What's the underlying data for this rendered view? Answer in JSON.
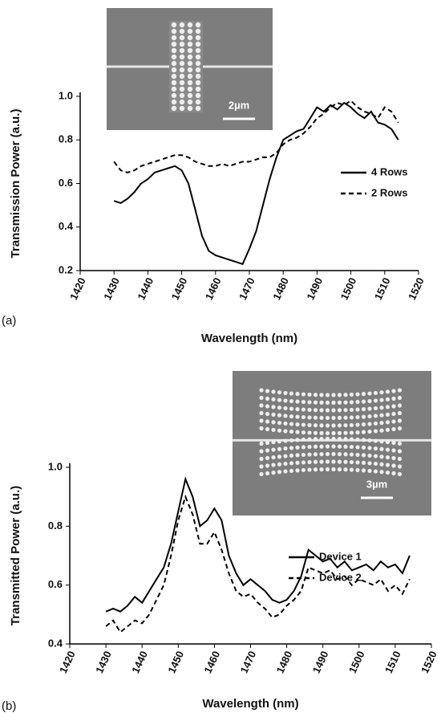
{
  "chart_data": [
    {
      "type": "line",
      "panel_label": "(a)",
      "inset_label": "2µm",
      "x_label": "Wavelength (nm)",
      "y_label": "Transmission Power (a.u.)",
      "xlim": [
        1420,
        1520
      ],
      "xticks": [
        1420,
        1430,
        1440,
        1450,
        1460,
        1470,
        1480,
        1490,
        1500,
        1510,
        1520
      ],
      "ylim": [
        0.2,
        1.0
      ],
      "yticks": [
        0.2,
        0.4,
        0.6,
        0.8,
        {
          "value": 1.0,
          "label": "1.0"
        }
      ],
      "grid": false,
      "x": [
        1430,
        1432,
        1434,
        1436,
        1438,
        1440,
        1442,
        1444,
        1446,
        1448,
        1450,
        1452,
        1454,
        1456,
        1458,
        1460,
        1462,
        1464,
        1466,
        1468,
        1470,
        1472,
        1474,
        1476,
        1478,
        1480,
        1482,
        1484,
        1486,
        1488,
        1490,
        1492,
        1494,
        1496,
        1498,
        1500,
        1502,
        1504,
        1506,
        1508,
        1510,
        1512,
        1514
      ],
      "series": [
        {
          "name": "4 Rows",
          "color": "#000000",
          "line_style": "solid",
          "values": [
            0.52,
            0.51,
            0.53,
            0.56,
            0.6,
            0.62,
            0.65,
            0.66,
            0.67,
            0.68,
            0.66,
            0.6,
            0.48,
            0.36,
            0.29,
            0.27,
            0.26,
            0.25,
            0.24,
            0.23,
            0.3,
            0.38,
            0.5,
            0.62,
            0.72,
            0.8,
            0.82,
            0.84,
            0.85,
            0.9,
            0.95,
            0.93,
            0.96,
            0.94,
            0.97,
            0.95,
            0.92,
            0.9,
            0.93,
            0.88,
            0.87,
            0.85,
            0.8
          ]
        },
        {
          "name": "2 Rows",
          "color": "#000000",
          "line_style": "dashed",
          "values": [
            0.7,
            0.66,
            0.65,
            0.66,
            0.68,
            0.69,
            0.7,
            0.71,
            0.72,
            0.73,
            0.73,
            0.72,
            0.7,
            0.69,
            0.68,
            0.68,
            0.69,
            0.68,
            0.69,
            0.7,
            0.7,
            0.71,
            0.72,
            0.72,
            0.74,
            0.78,
            0.8,
            0.81,
            0.83,
            0.86,
            0.9,
            0.92,
            0.95,
            0.97,
            0.96,
            0.98,
            0.95,
            0.93,
            0.92,
            0.9,
            0.95,
            0.93,
            0.88
          ]
        }
      ]
    },
    {
      "type": "line",
      "panel_label": "(b)",
      "inset_label": "3µm",
      "x_label": "Wavelength (nm)",
      "y_label": "Transmitted Power (a.u.)",
      "xlim": [
        1420,
        1520
      ],
      "xticks": [
        1420,
        1430,
        1440,
        1450,
        1460,
        1470,
        1480,
        1490,
        1500,
        1510,
        1520
      ],
      "ylim": [
        0.4,
        1.0
      ],
      "yticks": [
        0.4,
        0.6,
        0.8,
        {
          "value": 1.0,
          "label": "1.0"
        }
      ],
      "grid": false,
      "x": [
        1430,
        1432,
        1434,
        1436,
        1438,
        1440,
        1442,
        1444,
        1446,
        1448,
        1450,
        1452,
        1454,
        1456,
        1458,
        1460,
        1462,
        1464,
        1466,
        1468,
        1470,
        1472,
        1474,
        1476,
        1478,
        1480,
        1482,
        1484,
        1486,
        1488,
        1490,
        1492,
        1494,
        1496,
        1498,
        1500,
        1502,
        1504,
        1506,
        1508,
        1510,
        1512,
        1514
      ],
      "series": [
        {
          "name": "Device 1",
          "color": "#000000",
          "line_style": "solid",
          "values": [
            0.51,
            0.52,
            0.51,
            0.53,
            0.56,
            0.54,
            0.58,
            0.62,
            0.66,
            0.74,
            0.85,
            0.96,
            0.9,
            0.8,
            0.82,
            0.86,
            0.82,
            0.7,
            0.64,
            0.6,
            0.62,
            0.6,
            0.58,
            0.55,
            0.54,
            0.55,
            0.58,
            0.63,
            0.72,
            0.7,
            0.68,
            0.69,
            0.66,
            0.68,
            0.65,
            0.66,
            0.67,
            0.65,
            0.68,
            0.66,
            0.67,
            0.64,
            0.7
          ]
        },
        {
          "name": "Device 2",
          "color": "#000000",
          "line_style": "dashed",
          "values": [
            0.46,
            0.48,
            0.44,
            0.46,
            0.48,
            0.47,
            0.5,
            0.55,
            0.6,
            0.7,
            0.82,
            0.9,
            0.84,
            0.74,
            0.74,
            0.78,
            0.72,
            0.64,
            0.58,
            0.56,
            0.57,
            0.54,
            0.52,
            0.49,
            0.5,
            0.53,
            0.55,
            0.58,
            0.66,
            0.65,
            0.64,
            0.65,
            0.62,
            0.63,
            0.6,
            0.62,
            0.61,
            0.6,
            0.62,
            0.58,
            0.6,
            0.57,
            0.62
          ]
        }
      ]
    }
  ]
}
